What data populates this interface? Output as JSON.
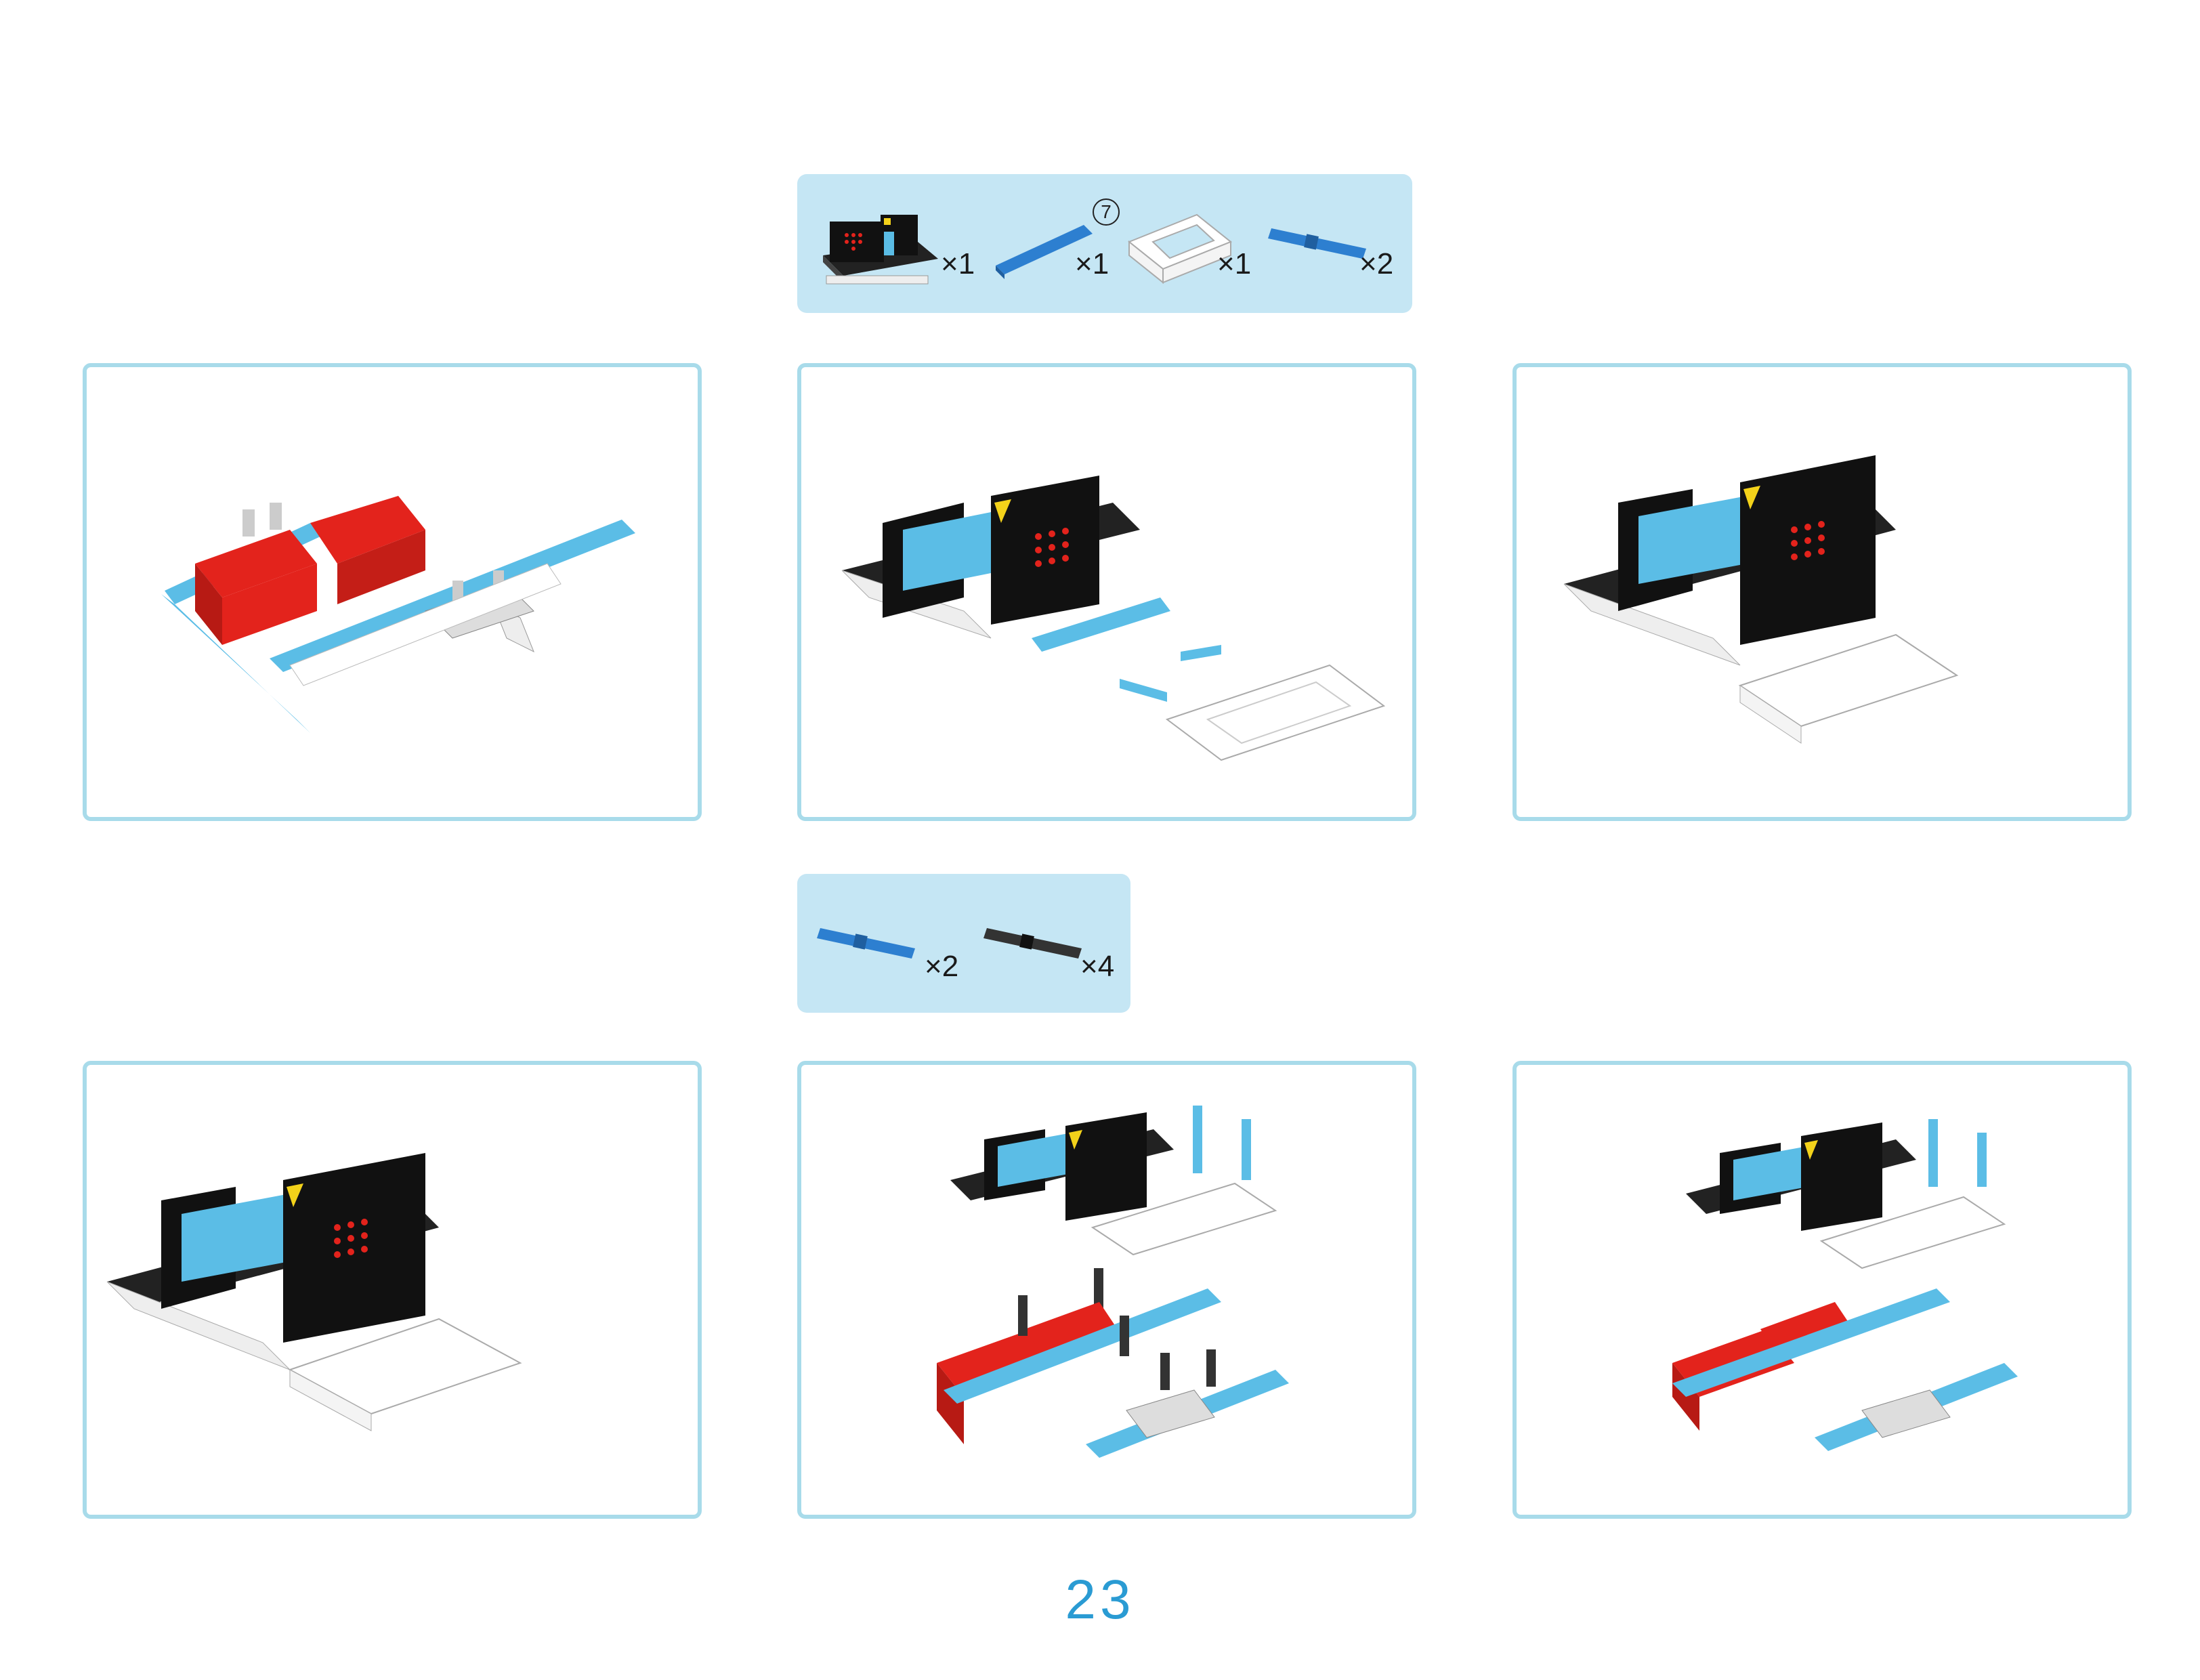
{
  "parts_list_1": {
    "items": [
      {
        "icon": "robot-board-with-microbit-icon",
        "qty": "×1"
      },
      {
        "icon": "blue-beam-7-icon",
        "qty": "×1",
        "callout": "7"
      },
      {
        "icon": "white-frame-icon",
        "qty": "×1"
      },
      {
        "icon": "blue-pin-icon",
        "qty": "×2"
      }
    ]
  },
  "parts_list_2": {
    "items": [
      {
        "icon": "blue-pin-icon",
        "qty": "×2"
      },
      {
        "icon": "black-pin-icon",
        "qty": "×4"
      }
    ]
  },
  "steps": [
    {
      "illustration": "chassis-with-red-motors-illustration"
    },
    {
      "illustration": "board-beam-pins-frame-exploded-illustration"
    },
    {
      "illustration": "board-on-frame-assembled-illustration"
    },
    {
      "illustration": "board-on-frame-illustration"
    },
    {
      "illustration": "board-and-chassis-with-pins-exploded-illustration"
    },
    {
      "illustration": "board-and-chassis-pins-inserted-illustration"
    }
  ],
  "colors": {
    "accent_blue": "#2a9bd3",
    "panel_blue": "#c5e6f4",
    "frame_border": "#a8dbea",
    "motor_red": "#e3231c",
    "beam_blue": "#5bbde6"
  },
  "page_number": "23"
}
